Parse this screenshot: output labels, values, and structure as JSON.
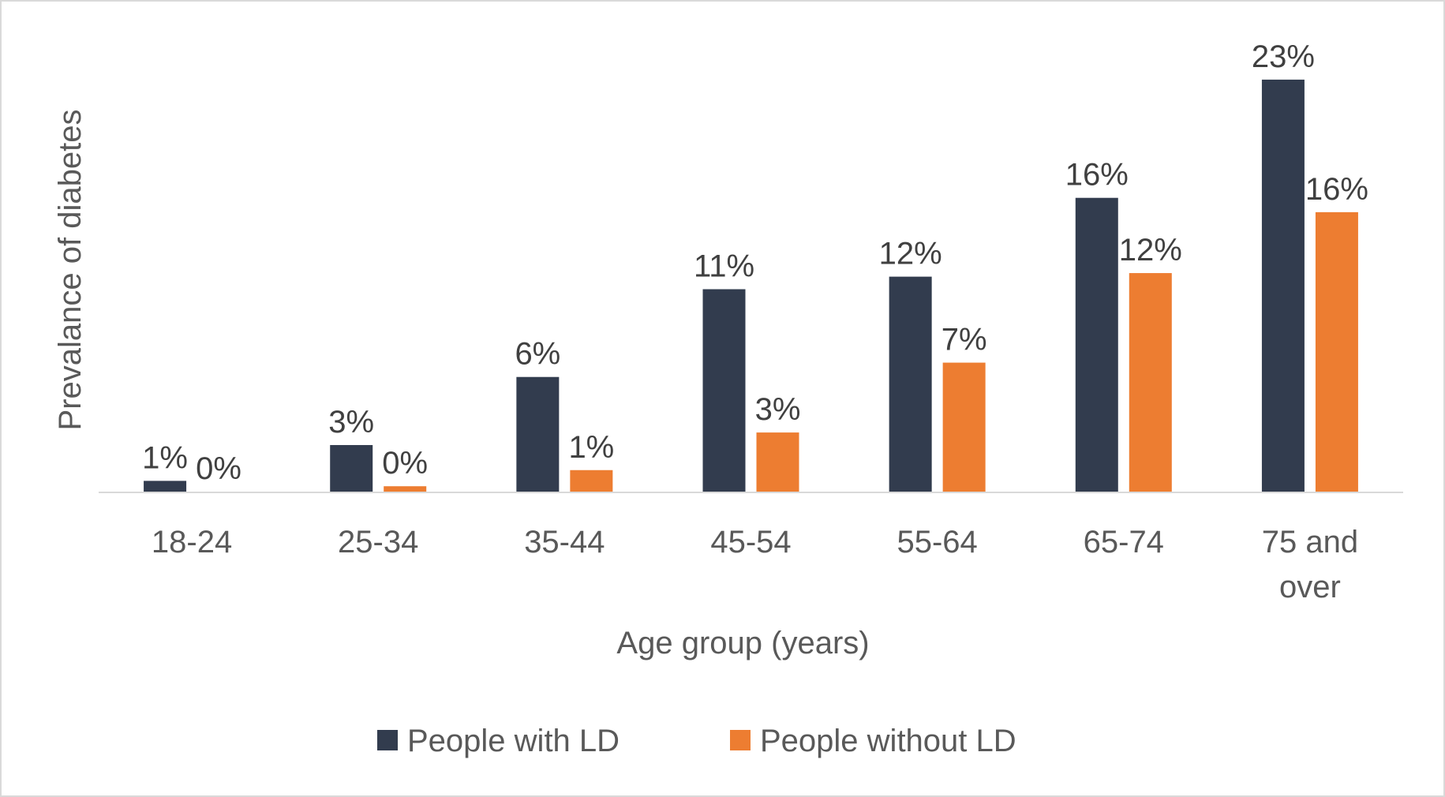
{
  "chart_data": {
    "type": "bar",
    "title": "",
    "xlabel": "Age group (years)",
    "ylabel": "Prevalance of diabetes",
    "categories": [
      "18-24",
      "25-34",
      "35-44",
      "45-54",
      "55-64",
      "65-74",
      "75 and over"
    ],
    "series": [
      {
        "name": "People with LD",
        "color": "#323c4e",
        "values": [
          0.6,
          2.6,
          6.4,
          11.3,
          12.0,
          16.4,
          23.0
        ],
        "labels": [
          "1%",
          "3%",
          "6%",
          "11%",
          "12%",
          "16%",
          "23%"
        ]
      },
      {
        "name": "People without LD",
        "color": "#ed7d31",
        "values": [
          0.0,
          0.3,
          1.2,
          3.3,
          7.2,
          12.2,
          15.6
        ],
        "labels": [
          "0%",
          "0%",
          "1%",
          "3%",
          "7%",
          "12%",
          "16%"
        ]
      }
    ],
    "ylim": [
      0,
      25
    ],
    "grid": false,
    "legend": "bottom"
  }
}
